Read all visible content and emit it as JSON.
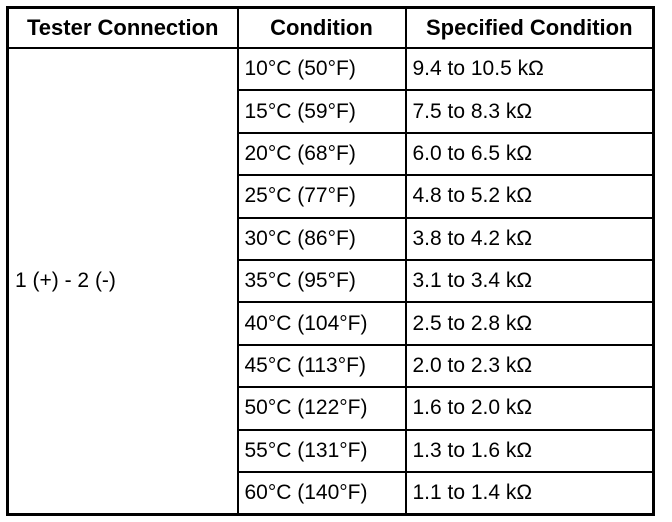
{
  "table": {
    "header": [
      "Tester Connection",
      "Condition",
      "Specified Condition"
    ],
    "connection": "1 (+) - 2 (-)",
    "rows": [
      [
        "10°C (50°F)",
        "9.4 to 10.5 kΩ"
      ],
      [
        "15°C (59°F)",
        "7.5 to 8.3 kΩ"
      ],
      [
        "20°C (68°F)",
        "6.0 to 6.5 kΩ"
      ],
      [
        "25°C (77°F)",
        "4.8 to 5.2 kΩ"
      ],
      [
        "30°C (86°F)",
        "3.8 to 4.2 kΩ"
      ],
      [
        "35°C (95°F)",
        "3.1 to 3.4 kΩ"
      ],
      [
        "40°C (104°F)",
        "2.5 to 2.8 kΩ"
      ],
      [
        "45°C (113°F)",
        "2.0 to 2.3 kΩ"
      ],
      [
        "50°C (122°F)",
        "1.6 to 2.0 kΩ"
      ],
      [
        "55°C (131°F)",
        "1.3 to 1.6 kΩ"
      ],
      [
        "60°C (140°F)",
        "1.1 to 1.4 kΩ"
      ]
    ]
  }
}
